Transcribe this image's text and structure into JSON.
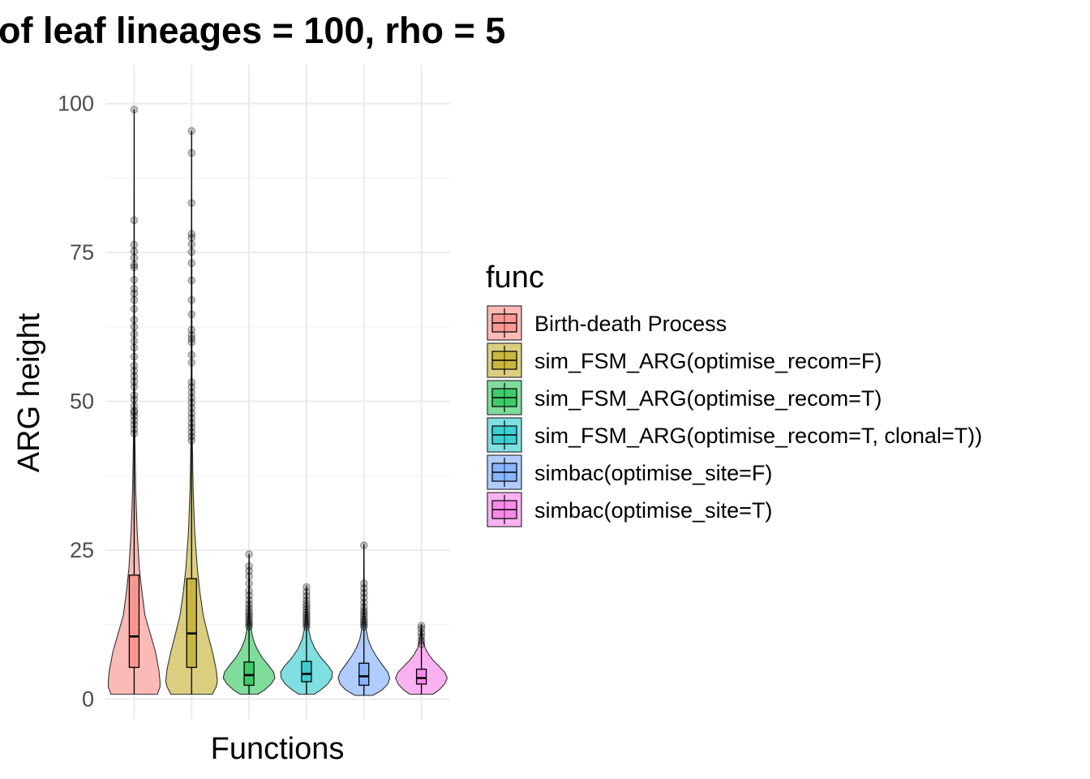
{
  "chart_data": {
    "type": "violin",
    "title": "of leaf lineages = 100, rho = 5",
    "xlabel": "Functions",
    "ylabel": "ARG height",
    "ylim": [
      -3.5,
      106.5
    ],
    "yticks": [
      0,
      25,
      50,
      75,
      100
    ],
    "ytick_labels": [
      "0",
      "25",
      "50",
      "75",
      "100"
    ],
    "grid": true,
    "x_tick_labels_shown": false,
    "legend": {
      "title": "func",
      "placement": "right",
      "entries": [
        {
          "label": "Birth-death Process",
          "color": "#F8766D"
        },
        {
          "label": "sim_FSM_ARG(optimise_recom=F)",
          "color": "#B79F00"
        },
        {
          "label": "sim_FSM_ARG(optimise_recom=T)",
          "color": "#00BA38"
        },
        {
          "label": "sim_FSM_ARG(optimise_recom=T, clonal=T))",
          "color": "#00BFC4"
        },
        {
          "label": "simbac(optimise_site=F)",
          "color": "#619CFF"
        },
        {
          "label": "simbac(optimise_site=T)",
          "color": "#F564E3"
        }
      ]
    },
    "series": [
      {
        "name": "Birth-death Process",
        "color": "#F8766D",
        "box": {
          "min": 0.8,
          "q1": 5.3,
          "median": 10.5,
          "q3": 20.8,
          "max": 44
        },
        "violin_profile": [
          [
            0.8,
            0.9
          ],
          [
            2,
            1.0
          ],
          [
            3,
            1.0
          ],
          [
            5,
            0.95
          ],
          [
            8,
            0.82
          ],
          [
            11,
            0.62
          ],
          [
            14,
            0.42
          ],
          [
            18,
            0.3
          ],
          [
            22,
            0.2
          ],
          [
            28,
            0.12
          ],
          [
            35,
            0.06
          ],
          [
            43,
            0.03
          ],
          [
            55,
            0.018
          ],
          [
            70,
            0.01
          ],
          [
            85,
            0.005
          ],
          [
            99,
            0.002
          ]
        ],
        "outliers": [
          44.6,
          45.3,
          46.1,
          46.8,
          47.5,
          48.1,
          48.4,
          49.2,
          50.3,
          51.0,
          52.4,
          53.3,
          54.2,
          55.1,
          56.0,
          57.5,
          59.0,
          60.1,
          61.3,
          62.5,
          63.7,
          65.5,
          67.0,
          68.1,
          68.9,
          70.4,
          72.5,
          72.9,
          74.1,
          75.2,
          76.3,
          80.4,
          99.0
        ]
      },
      {
        "name": "sim_FSM_ARG(optimise_recom=F)",
        "color": "#B79F00",
        "box": {
          "min": 0.8,
          "q1": 5.3,
          "median": 11.0,
          "q3": 20.2,
          "max": 43
        },
        "violin_profile": [
          [
            0.8,
            0.8
          ],
          [
            2,
            0.95
          ],
          [
            3,
            1.0
          ],
          [
            5,
            0.95
          ],
          [
            8,
            0.8
          ],
          [
            11,
            0.62
          ],
          [
            14,
            0.45
          ],
          [
            18,
            0.32
          ],
          [
            22,
            0.22
          ],
          [
            28,
            0.12
          ],
          [
            35,
            0.06
          ],
          [
            43,
            0.03
          ],
          [
            55,
            0.018
          ],
          [
            70,
            0.01
          ],
          [
            85,
            0.005
          ],
          [
            95.4,
            0.002
          ]
        ],
        "outliers": [
          43.4,
          44.1,
          44.8,
          45.6,
          46.3,
          47.2,
          48.0,
          48.9,
          49.8,
          50.6,
          51.5,
          52.4,
          53.2,
          56.5,
          57.8,
          59.9,
          60.5,
          61.1,
          62.0,
          64.6,
          67.0,
          70.3,
          73.2,
          75.1,
          76.4,
          77.5,
          78.1,
          83.3,
          91.7,
          95.4
        ]
      },
      {
        "name": "sim_FSM_ARG(optimise_recom=T)",
        "color": "#00BA38",
        "box": {
          "min": 0.8,
          "q1": 2.3,
          "median": 4.0,
          "q3": 6.2,
          "max": 11.8
        },
        "violin_profile": [
          [
            0.8,
            0.35
          ],
          [
            1.5,
            0.6
          ],
          [
            2.5,
            0.85
          ],
          [
            3.5,
            1.0
          ],
          [
            4.5,
            0.95
          ],
          [
            5.5,
            0.78
          ],
          [
            7,
            0.5
          ],
          [
            8.5,
            0.3
          ],
          [
            10,
            0.16
          ],
          [
            12,
            0.07
          ],
          [
            14,
            0.035
          ],
          [
            17,
            0.02
          ],
          [
            20,
            0.012
          ],
          [
            24.3,
            0.004
          ]
        ],
        "outliers": [
          12.1,
          12.5,
          12.9,
          13.3,
          13.8,
          14.2,
          14.7,
          15.3,
          15.9,
          16.6,
          17.4,
          18.2,
          19.4,
          20.6,
          21.5,
          22.3,
          24.3
        ]
      },
      {
        "name": "sim_FSM_ARG(optimise_recom=T, clonal=T))",
        "color": "#00BFC4",
        "box": {
          "min": 0.8,
          "q1": 2.9,
          "median": 4.2,
          "q3": 6.3,
          "max": 11.8
        },
        "violin_profile": [
          [
            0.8,
            0.3
          ],
          [
            1.5,
            0.55
          ],
          [
            2.5,
            0.82
          ],
          [
            3.5,
            0.98
          ],
          [
            4.5,
            1.0
          ],
          [
            5.5,
            0.85
          ],
          [
            7,
            0.55
          ],
          [
            8.5,
            0.32
          ],
          [
            10,
            0.17
          ],
          [
            12,
            0.07
          ],
          [
            14,
            0.035
          ],
          [
            16,
            0.018
          ],
          [
            19,
            0.005
          ]
        ],
        "outliers": [
          12.1,
          12.5,
          12.9,
          13.3,
          13.7,
          14.1,
          14.5,
          15.0,
          15.5,
          16.0,
          16.6,
          17.3,
          18.0,
          18.8
        ]
      },
      {
        "name": "simbac(optimise_site=F)",
        "color": "#619CFF",
        "box": {
          "min": 0.6,
          "q1": 2.3,
          "median": 3.8,
          "q3": 6.0,
          "max": 11.8
        },
        "violin_profile": [
          [
            0.6,
            0.35
          ],
          [
            1.5,
            0.7
          ],
          [
            2.5,
            0.92
          ],
          [
            3.5,
            1.0
          ],
          [
            4.5,
            0.92
          ],
          [
            5.5,
            0.75
          ],
          [
            7,
            0.5
          ],
          [
            8.5,
            0.3
          ],
          [
            10,
            0.16
          ],
          [
            12,
            0.07
          ],
          [
            14,
            0.035
          ],
          [
            17,
            0.018
          ],
          [
            20,
            0.01
          ],
          [
            26,
            0.003
          ]
        ],
        "outliers": [
          12.1,
          12.5,
          12.9,
          13.3,
          13.8,
          14.3,
          14.8,
          15.4,
          16.2,
          17.0,
          17.8,
          18.6,
          19.4,
          25.8
        ]
      },
      {
        "name": "simbac(optimise_site=T)",
        "color": "#F564E3",
        "box": {
          "min": 0.8,
          "q1": 2.5,
          "median": 3.5,
          "q3": 5.0,
          "max": 8.8
        },
        "violin_profile": [
          [
            0.8,
            0.45
          ],
          [
            1.5,
            0.68
          ],
          [
            2.5,
            0.9
          ],
          [
            3.5,
            1.0
          ],
          [
            4.5,
            0.9
          ],
          [
            5.5,
            0.68
          ],
          [
            6.5,
            0.45
          ],
          [
            7.5,
            0.28
          ],
          [
            8.5,
            0.15
          ],
          [
            9.5,
            0.08
          ],
          [
            10.5,
            0.045
          ],
          [
            11.5,
            0.02
          ],
          [
            12.5,
            0.005
          ]
        ],
        "outliers": [
          9.2,
          9.8,
          10.5,
          11.1,
          11.8,
          12.3
        ]
      }
    ]
  }
}
